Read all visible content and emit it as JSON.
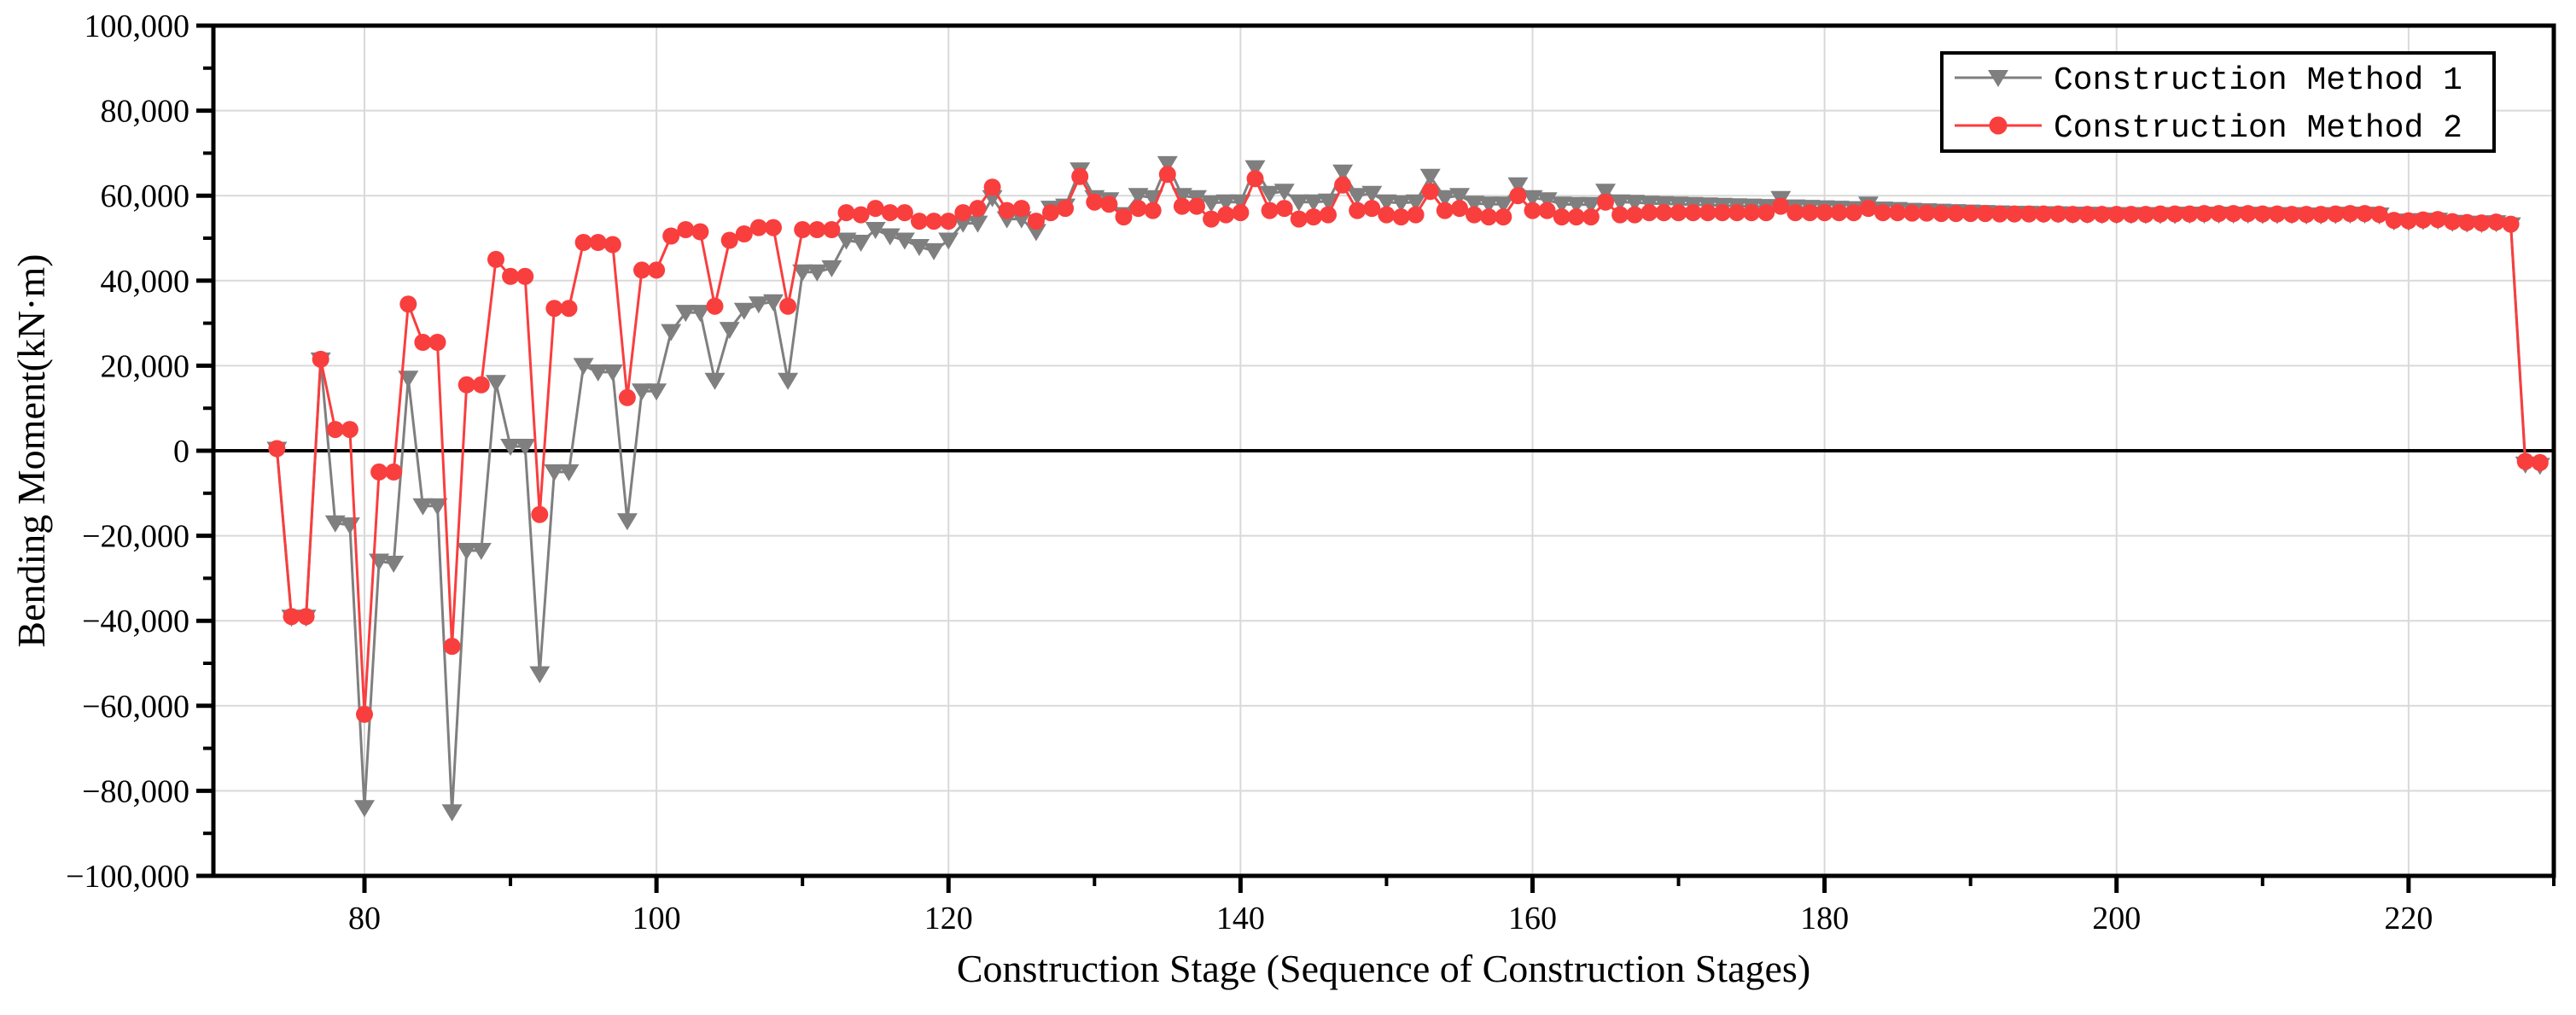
{
  "chart_data": {
    "type": "line",
    "title": "",
    "xlabel": "Construction Stage (Sequence of Construction Stages)",
    "ylabel": "Bending Moment(kN·m)",
    "x_start_stage": 74,
    "x": "integer stages 74..229",
    "xlim": [
      69.65,
      229.95
    ],
    "ylim": [
      -100000,
      100000
    ],
    "grid": true,
    "legend_position": "top-right",
    "x_ticks_major": [
      80,
      100,
      120,
      140,
      160,
      180,
      200,
      220
    ],
    "x_ticks_minor": [
      90,
      110,
      130,
      150,
      170,
      190,
      210,
      230
    ],
    "y_ticks_major": [
      100000,
      80000,
      60000,
      40000,
      20000,
      0,
      -20000,
      -40000,
      -60000,
      -80000,
      -100000
    ],
    "y_ticks_minor": [
      90000,
      70000,
      50000,
      30000,
      10000,
      -10000,
      -30000,
      -50000,
      -70000,
      -90000
    ],
    "series": [
      {
        "name": "Construction Method 1",
        "color": "#7f7f7f",
        "marker": "triangle-down",
        "values": [
          300,
          -39200,
          -39200,
          21300,
          -17000,
          -17500,
          -84000,
          -26000,
          -26500,
          17000,
          -13000,
          -13000,
          -85000,
          -23500,
          -23500,
          16000,
          1000,
          1000,
          -52500,
          -5000,
          -5000,
          20000,
          18500,
          18500,
          -16500,
          14000,
          14000,
          28000,
          32500,
          32500,
          16500,
          28500,
          33000,
          34500,
          35000,
          16500,
          42000,
          42000,
          43000,
          49500,
          49000,
          52000,
          50500,
          49500,
          48000,
          47000,
          49500,
          53500,
          53500,
          59500,
          54500,
          54500,
          51500,
          57000,
          57500,
          66000,
          59500,
          59000,
          55500,
          60000,
          59500,
          67500,
          60000,
          59500,
          58300,
          58500,
          58500,
          66500,
          60500,
          61000,
          58500,
          58500,
          58700,
          65500,
          60000,
          60500,
          58500,
          58300,
          58500,
          64500,
          59500,
          60000,
          58200,
          58000,
          58000,
          62500,
          59500,
          59000,
          58000,
          57900,
          57900,
          61000,
          58500,
          58400,
          58200,
          58100,
          58000,
          57900,
          57800,
          57700,
          57600,
          57500,
          57400,
          59300,
          57300,
          57200,
          57100,
          57000,
          56900,
          58000,
          56800,
          56700,
          56500,
          56400,
          56300,
          56200,
          56100,
          56000,
          55900,
          55800,
          55800,
          55700,
          55700,
          55600,
          55600,
          55500,
          55500,
          55500,
          55500,
          55500,
          55500,
          55600,
          55600,
          55600,
          55600,
          55600,
          55500,
          55500,
          55500,
          55400,
          55400,
          55500,
          55600,
          55600,
          55400,
          54000,
          53900,
          54100,
          54200,
          53700,
          53500,
          53400,
          53600,
          53100,
          -3200,
          -3500
        ]
      },
      {
        "name": "Construction Method 2",
        "color": "#f93e3e",
        "marker": "circle",
        "values": [
          500,
          -39000,
          -39000,
          21500,
          5000,
          5000,
          -62000,
          -5000,
          -5000,
          34500,
          25500,
          25500,
          -46000,
          15500,
          15500,
          45000,
          41000,
          41000,
          -15000,
          33500,
          33500,
          49000,
          49000,
          48500,
          12500,
          42500,
          42500,
          50500,
          52000,
          51500,
          34000,
          49500,
          51000,
          52500,
          52500,
          34000,
          52000,
          52000,
          52000,
          56000,
          55500,
          57000,
          56000,
          56000,
          54000,
          54000,
          54000,
          56000,
          57000,
          62000,
          56500,
          57000,
          54000,
          56000,
          57000,
          64500,
          58500,
          58000,
          55000,
          57000,
          56500,
          65000,
          57500,
          57500,
          54500,
          55500,
          56000,
          64000,
          56500,
          57000,
          54500,
          55000,
          55500,
          62500,
          56500,
          57000,
          55500,
          55000,
          55500,
          61000,
          56500,
          57000,
          55500,
          55000,
          55000,
          60000,
          56500,
          56500,
          55000,
          55000,
          55000,
          58500,
          55500,
          55500,
          56000,
          56000,
          56000,
          56000,
          56000,
          56000,
          56000,
          56000,
          56000,
          57500,
          56000,
          56000,
          56000,
          56000,
          56000,
          57000,
          56000,
          56000,
          55900,
          55900,
          55800,
          55800,
          55800,
          55800,
          55700,
          55700,
          55700,
          55700,
          55700,
          55600,
          55600,
          55600,
          55600,
          55600,
          55600,
          55700,
          55700,
          55700,
          55800,
          55800,
          55800,
          55800,
          55700,
          55700,
          55600,
          55600,
          55600,
          55700,
          55800,
          55800,
          55600,
          54200,
          54100,
          54300,
          54400,
          53900,
          53700,
          53600,
          53800,
          53300,
          -2500,
          -2800
        ]
      }
    ]
  },
  "axes": {
    "y_tick_labels": [
      "100,000",
      "80,000",
      "60,000",
      "40,000",
      "20,000",
      "0",
      "−20,000",
      "−40,000",
      "−60,000",
      "−80,000",
      "−100,000"
    ],
    "x_tick_labels": [
      "80",
      "100",
      "120",
      "140",
      "160",
      "180",
      "200",
      "220"
    ],
    "xlabel": "Construction Stage (Sequence of Construction Stages)",
    "ylabel": "Bending Moment(kN·m)"
  },
  "legend": {
    "items": [
      {
        "label": "Construction Method 1",
        "color": "#7f7f7f",
        "marker": "triangle-down"
      },
      {
        "label": "Construction Method 2",
        "color": "#f93e3e",
        "marker": "circle"
      }
    ]
  },
  "colors": {
    "series1": "#7f7f7f",
    "series2": "#f93e3e",
    "grid": "#d9d9d9",
    "axis": "#000000",
    "zero_line": "#000000",
    "background": "#ffffff"
  }
}
